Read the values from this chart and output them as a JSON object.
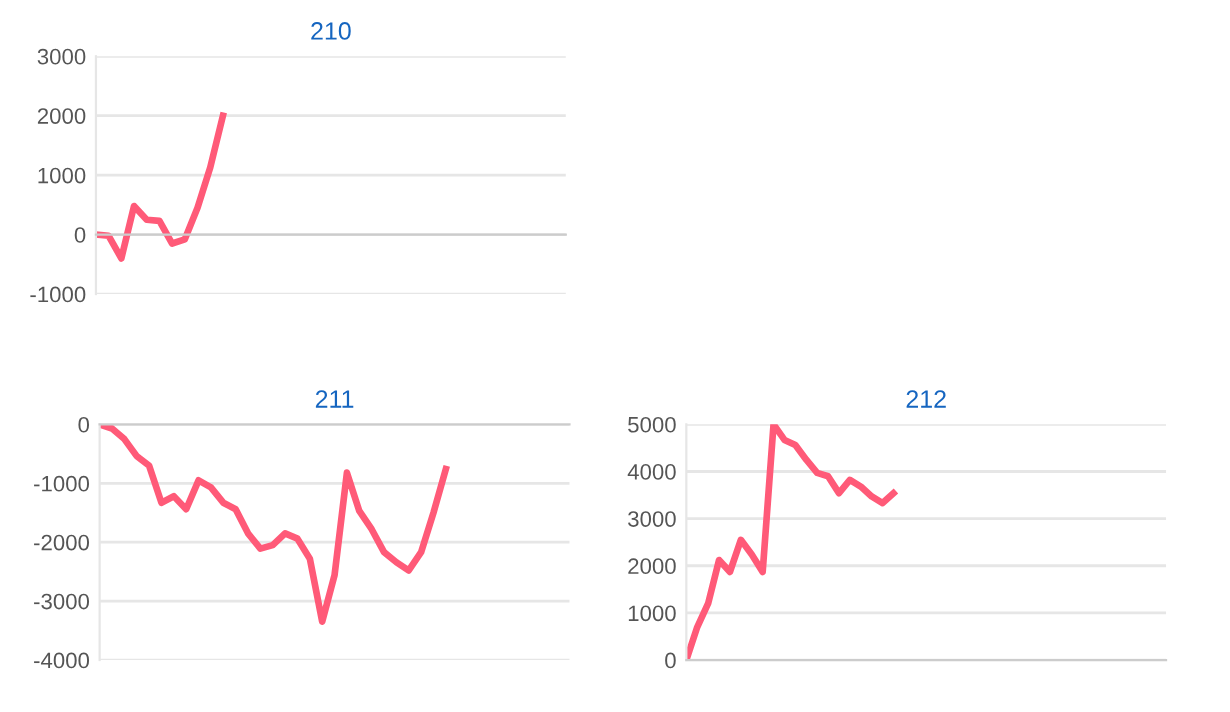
{
  "chart_data": [
    {
      "type": "line",
      "title": "210",
      "categories": [
        null,
        null,
        null,
        null,
        null,
        null,
        null,
        null,
        null,
        null,
        null,
        null,
        null,
        null,
        null,
        null,
        null,
        null,
        null,
        null,
        null,
        null,
        null,
        null,
        null,
        null,
        null,
        null,
        null,
        null,
        null,
        null,
        null,
        null,
        null,
        null,
        null,
        null
      ],
      "series": [
        {
          "color": "#ff5a78",
          "values": [
            0,
            -20,
            -400,
            480,
            250,
            230,
            -150,
            -80,
            450,
            1130,
            2000,
            null,
            null,
            null,
            null,
            null,
            null,
            null,
            null,
            null,
            null,
            null,
            null,
            null,
            null,
            null,
            null,
            null,
            null,
            null,
            null,
            null,
            null,
            null,
            null,
            null,
            null,
            null
          ]
        }
      ],
      "ylim": [
        -1000,
        3000
      ],
      "yticks": [
        -1000,
        0,
        1000,
        2000,
        3000
      ],
      "grid": "y",
      "tick_labels": "y",
      "marker": "none",
      "line_style": "solid"
    },
    {
      "type": "line",
      "title": "211",
      "categories": [
        null,
        null,
        null,
        null,
        null,
        null,
        null,
        null,
        null,
        null,
        null,
        null,
        null,
        null,
        null,
        null,
        null,
        null,
        null,
        null,
        null,
        null,
        null,
        null,
        null,
        null,
        null,
        null,
        null,
        null,
        null,
        null,
        null,
        null,
        null,
        null,
        null,
        null,
        null
      ],
      "series": [
        {
          "color": "#ff5a78",
          "values": [
            0,
            -70,
            -250,
            -540,
            -700,
            -1330,
            -1220,
            -1440,
            -950,
            -1070,
            -1330,
            -1440,
            -1850,
            -2110,
            -2050,
            -1850,
            -1940,
            -2280,
            -3350,
            -2560,
            -820,
            -1470,
            -1780,
            -2170,
            -2340,
            -2480,
            -2170,
            -1500,
            -760,
            null,
            null,
            null,
            null,
            null,
            null,
            null,
            null,
            null,
            null
          ]
        }
      ],
      "ylim": [
        -4000,
        0
      ],
      "yticks": [
        -4000,
        -3000,
        -2000,
        -1000,
        0
      ],
      "grid": "y",
      "tick_labels": "y",
      "marker": "none",
      "line_style": "solid"
    },
    {
      "type": "line",
      "title": "212",
      "categories": [
        null,
        null,
        null,
        null,
        null,
        null,
        null,
        null,
        null,
        null,
        null,
        null,
        null,
        null,
        null,
        null,
        null,
        null,
        null,
        null,
        null,
        null,
        null,
        null,
        null,
        null,
        null,
        null,
        null,
        null,
        null,
        null,
        null,
        null,
        null,
        null,
        null,
        null,
        null,
        null,
        null,
        null,
        null,
        null,
        null
      ],
      "series": [
        {
          "color": "#ff5a78",
          "values": [
            0,
            700,
            1200,
            2120,
            1870,
            2550,
            2240,
            1870,
            5000,
            4670,
            4560,
            4250,
            3970,
            3900,
            3540,
            3820,
            3680,
            3470,
            3330,
            3540,
            null,
            null,
            null,
            null,
            null,
            null,
            null,
            null,
            null,
            null,
            null,
            null,
            null,
            null,
            null,
            null,
            null,
            null,
            null,
            null,
            null,
            null,
            null,
            null,
            null
          ]
        }
      ],
      "ylim": [
        0,
        5000
      ],
      "yticks": [
        0,
        1000,
        2000,
        3000,
        4000,
        5000
      ],
      "grid": "y",
      "tick_labels": "y",
      "marker": "none",
      "line_style": "solid"
    }
  ]
}
